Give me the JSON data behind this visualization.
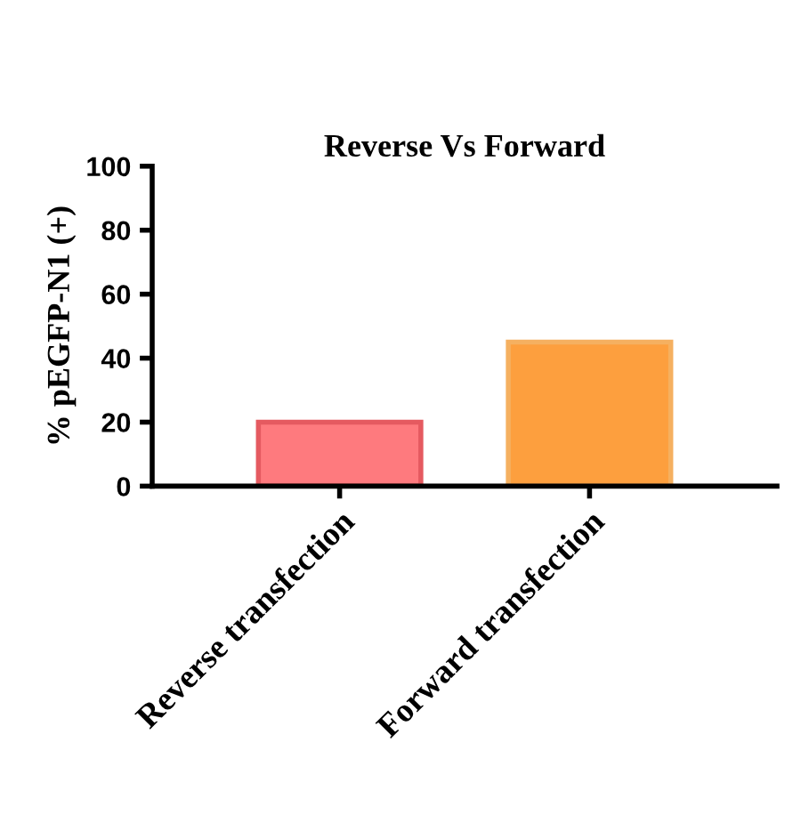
{
  "chart_data": {
    "type": "bar",
    "title": "Reverse Vs Forward",
    "ylabel": "% pEGFP-N1 (+)",
    "categories": [
      "Reverse transfection",
      "Forward transfection"
    ],
    "values": [
      20,
      45
    ],
    "colors": [
      "#fe7a7e",
      "#fd9f3e"
    ],
    "ylim": [
      0,
      100
    ],
    "yticks": [
      0,
      20,
      40,
      60,
      80,
      100
    ],
    "grid": false,
    "legend": false
  }
}
